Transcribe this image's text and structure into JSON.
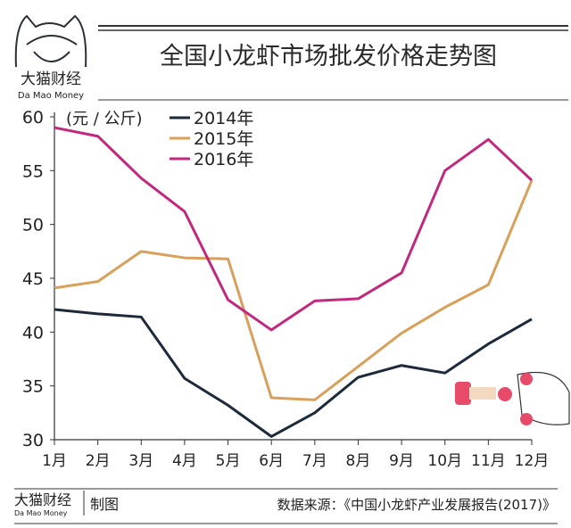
{
  "brand": {
    "name_cn": "大猫财经",
    "name_en": "Da Mao Money"
  },
  "footer": {
    "made_by": "制图",
    "source": "数据来源：《中国小龙虾产业发展报告(2017)》"
  },
  "colors": {
    "2014": "#1c2a3a",
    "2015": "#d9a05b",
    "2016": "#c2287e"
  },
  "chart_data": {
    "type": "line",
    "title": "全国小龙虾市场批发价格走势图",
    "ylabel": "(元 / 公斤)",
    "xlabel": "",
    "ylim": [
      30,
      60
    ],
    "yticks": [
      "30",
      "35",
      "40",
      "45",
      "50",
      "55",
      "60"
    ],
    "categories": [
      "1月",
      "2月",
      "3月",
      "4月",
      "5月",
      "6月",
      "7月",
      "8月",
      "9月",
      "10月",
      "11月",
      "12月"
    ],
    "legend_position": "top-left",
    "grid": false,
    "series": [
      {
        "name": "2014年",
        "key": "2014",
        "values": [
          42.1,
          41.7,
          41.4,
          35.7,
          33.2,
          30.3,
          32.5,
          35.8,
          36.9,
          36.2,
          38.9,
          41.2
        ]
      },
      {
        "name": "2015年",
        "key": "2015",
        "values": [
          44.1,
          44.7,
          47.5,
          46.9,
          46.8,
          33.9,
          33.7,
          36.8,
          39.9,
          42.3,
          44.4,
          54.1
        ]
      },
      {
        "name": "2016年",
        "key": "2016",
        "values": [
          59.0,
          58.2,
          54.3,
          51.2,
          43.0,
          40.2,
          42.9,
          43.1,
          45.5,
          55.0,
          57.9,
          54.1
        ]
      }
    ]
  }
}
